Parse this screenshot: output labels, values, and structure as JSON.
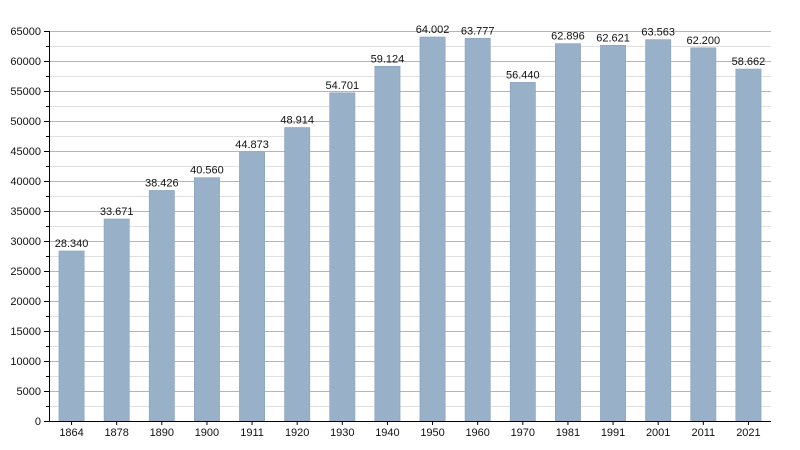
{
  "colors": {
    "bar_fill": "#98b0c8",
    "bar_stroke": "#8aa2ba",
    "major_grid": "#b5b5b5",
    "minor_grid": "#e0e0e0",
    "axis": "#000000",
    "text": "#111111"
  },
  "chart_data": {
    "type": "bar",
    "title": "",
    "xlabel": "",
    "ylabel": "",
    "categories": [
      "1864",
      "1878",
      "1890",
      "1900",
      "1911",
      "1920",
      "1930",
      "1940",
      "1950",
      "1960",
      "1970",
      "1981",
      "1991",
      "2001",
      "2011",
      "2021"
    ],
    "values": [
      28340,
      33671,
      38426,
      40560,
      44873,
      48914,
      54701,
      59124,
      64002,
      63777,
      56440,
      62896,
      62621,
      63563,
      62200,
      58662
    ],
    "value_labels": [
      "28.340",
      "33.671",
      "38.426",
      "40.560",
      "44.873",
      "48.914",
      "54.701",
      "59.124",
      "64.002",
      "63.777",
      "56.440",
      "62.896",
      "62.621",
      "63.563",
      "62.200",
      "58.662"
    ],
    "ylim": [
      0,
      65000
    ],
    "y_ticks": [
      0,
      5000,
      10000,
      15000,
      20000,
      25000,
      30000,
      35000,
      40000,
      45000,
      50000,
      55000,
      60000,
      65000
    ],
    "y_tick_labels": [
      "0",
      "5000",
      "10000",
      "15000",
      "20000",
      "25000",
      "30000",
      "35000",
      "40000",
      "45000",
      "50000",
      "55000",
      "60000",
      "65000"
    ],
    "y_minor_step": 2500,
    "grid": true,
    "legend": "none"
  }
}
